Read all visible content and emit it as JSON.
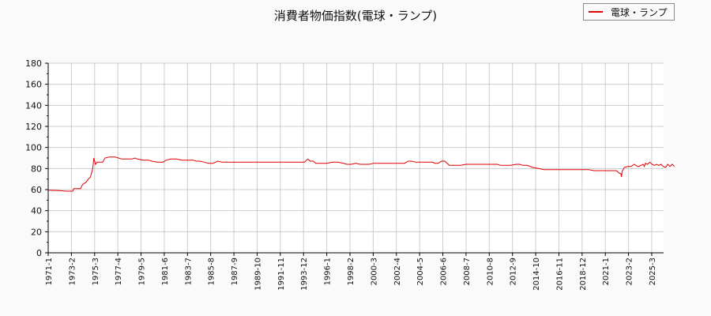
{
  "chart_data": {
    "type": "line",
    "title": "消費者物価指数(電球・ランプ)",
    "xlabel": "",
    "ylabel": "",
    "ylim": [
      0,
      180
    ],
    "yticks": [
      0,
      20,
      40,
      60,
      80,
      100,
      120,
      140,
      160,
      180
    ],
    "grid": true,
    "legend_position": "top-right",
    "x_tick_labels": [
      "1971-1",
      "1973-2",
      "1975-3",
      "1977-4",
      "1979-5",
      "1981-6",
      "1983-7",
      "1985-8",
      "1987-9",
      "1989-10",
      "1991-11",
      "1993-12",
      "1996-1",
      "1998-2",
      "2000-3",
      "2002-4",
      "2004-5",
      "2006-6",
      "2008-7",
      "2010-8",
      "2012-9",
      "2014-10",
      "2016-11",
      "2018-12",
      "2021-1",
      "2023-2",
      "2025-3"
    ],
    "series": [
      {
        "name": "電球・ランプ",
        "color": "#e00000",
        "points": [
          [
            1971.0,
            59.5
          ],
          [
            1972.0,
            59
          ],
          [
            1972.6,
            58.5
          ],
          [
            1973.2,
            58.5
          ],
          [
            1973.3,
            61
          ],
          [
            1973.9,
            61
          ],
          [
            1974.1,
            65
          ],
          [
            1974.4,
            67
          ],
          [
            1974.6,
            70
          ],
          [
            1974.8,
            72
          ],
          [
            1975.0,
            80
          ],
          [
            1975.1,
            90
          ],
          [
            1975.25,
            84
          ],
          [
            1975.4,
            86
          ],
          [
            1975.7,
            86
          ],
          [
            1975.9,
            86
          ],
          [
            1976.1,
            90
          ],
          [
            1976.5,
            91
          ],
          [
            1977.0,
            91
          ],
          [
            1977.3,
            90
          ],
          [
            1977.6,
            89
          ],
          [
            1978.0,
            89
          ],
          [
            1978.5,
            89
          ],
          [
            1978.8,
            90
          ],
          [
            1979.0,
            89
          ],
          [
            1979.5,
            88
          ],
          [
            1980.0,
            88
          ],
          [
            1980.3,
            87
          ],
          [
            1980.8,
            86
          ],
          [
            1981.3,
            86
          ],
          [
            1981.6,
            88
          ],
          [
            1982.0,
            89
          ],
          [
            1982.5,
            89
          ],
          [
            1983.0,
            88
          ],
          [
            1983.5,
            88
          ],
          [
            1984.0,
            88
          ],
          [
            1984.3,
            87
          ],
          [
            1984.6,
            87
          ],
          [
            1985.0,
            86
          ],
          [
            1985.4,
            85
          ],
          [
            1985.8,
            85
          ],
          [
            1986.2,
            87
          ],
          [
            1986.6,
            86
          ],
          [
            1987.0,
            86
          ],
          [
            1987.5,
            86
          ],
          [
            1988.0,
            86
          ],
          [
            1990.0,
            86
          ],
          [
            1992.0,
            86
          ],
          [
            1993.5,
            86
          ],
          [
            1994.0,
            86
          ],
          [
            1994.3,
            89
          ],
          [
            1994.5,
            87
          ],
          [
            1994.8,
            87
          ],
          [
            1995.0,
            85
          ],
          [
            1995.5,
            85
          ],
          [
            1996.0,
            85
          ],
          [
            1996.5,
            86
          ],
          [
            1997.0,
            86
          ],
          [
            1997.5,
            85
          ],
          [
            1997.8,
            84
          ],
          [
            1998.2,
            84
          ],
          [
            1998.6,
            85
          ],
          [
            1999.0,
            84
          ],
          [
            1999.3,
            84
          ],
          [
            1999.8,
            84
          ],
          [
            2000.2,
            85
          ],
          [
            2000.5,
            85
          ],
          [
            2001.0,
            85
          ],
          [
            2001.5,
            85
          ],
          [
            2002.0,
            85
          ],
          [
            2002.5,
            85
          ],
          [
            2003.0,
            85
          ],
          [
            2003.3,
            87
          ],
          [
            2003.6,
            87
          ],
          [
            2004.0,
            86
          ],
          [
            2004.5,
            86
          ],
          [
            2005.0,
            86
          ],
          [
            2005.3,
            86
          ],
          [
            2005.5,
            86
          ],
          [
            2005.7,
            85
          ],
          [
            2006.0,
            85
          ],
          [
            2006.3,
            87
          ],
          [
            2006.6,
            87
          ],
          [
            2007.0,
            83
          ],
          [
            2007.5,
            83
          ],
          [
            2008.0,
            83
          ],
          [
            2008.5,
            84
          ],
          [
            2009.0,
            84
          ],
          [
            2009.5,
            84
          ],
          [
            2010.0,
            84
          ],
          [
            2010.5,
            84
          ],
          [
            2011.0,
            84
          ],
          [
            2011.3,
            84
          ],
          [
            2011.6,
            83
          ],
          [
            2012.0,
            83
          ],
          [
            2012.5,
            83
          ],
          [
            2013.0,
            84
          ],
          [
            2013.3,
            84
          ],
          [
            2013.6,
            83
          ],
          [
            2014.0,
            83
          ],
          [
            2014.5,
            81
          ],
          [
            2015.0,
            80
          ],
          [
            2015.5,
            79
          ],
          [
            2016.0,
            79
          ],
          [
            2016.5,
            79
          ],
          [
            2017.0,
            79
          ],
          [
            2017.5,
            79
          ],
          [
            2018.0,
            79
          ],
          [
            2018.5,
            79
          ],
          [
            2019.0,
            79
          ],
          [
            2019.5,
            79
          ],
          [
            2020.0,
            78
          ],
          [
            2020.5,
            78
          ],
          [
            2021.0,
            78
          ],
          [
            2021.5,
            78
          ],
          [
            2022.0,
            78
          ],
          [
            2022.2,
            76
          ],
          [
            2022.4,
            75
          ],
          [
            2022.45,
            72
          ],
          [
            2022.5,
            77
          ],
          [
            2022.7,
            81
          ],
          [
            2023.0,
            82
          ],
          [
            2023.3,
            82
          ],
          [
            2023.6,
            84
          ],
          [
            2023.9,
            82
          ],
          [
            2024.0,
            82
          ],
          [
            2024.2,
            83
          ],
          [
            2024.4,
            84
          ],
          [
            2024.5,
            82
          ],
          [
            2024.6,
            85
          ],
          [
            2024.8,
            84
          ],
          [
            2025.0,
            86
          ],
          [
            2025.2,
            84
          ],
          [
            2025.4,
            83
          ],
          [
            2025.6,
            84
          ],
          [
            2025.8,
            83
          ],
          [
            2026.0,
            84
          ],
          [
            2026.2,
            82
          ],
          [
            2026.4,
            81
          ],
          [
            2026.6,
            84
          ],
          [
            2026.8,
            82
          ],
          [
            2027.0,
            84
          ],
          [
            2027.2,
            82
          ]
        ]
      }
    ]
  },
  "legend": {
    "label": "電球・ランプ"
  }
}
